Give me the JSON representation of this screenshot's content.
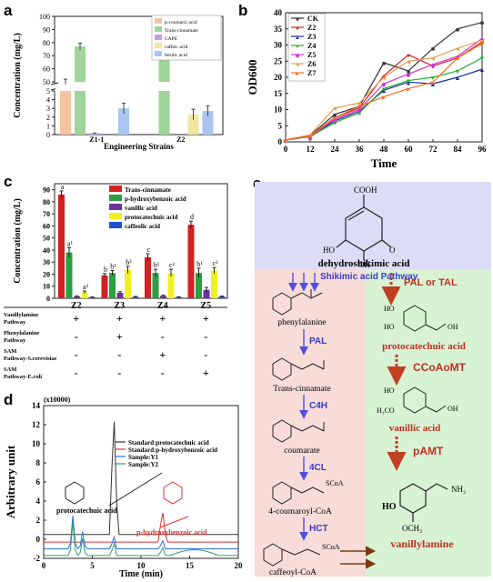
{
  "panels": {
    "a": {
      "label": "a",
      "chart_data": {
        "type": "bar",
        "categories": [
          "Z1-1",
          "Z2"
        ],
        "series": [
          {
            "name": "p-coumaric acid",
            "values": [
              50,
              null
            ],
            "errors": [
              2,
              null
            ],
            "color": "#f5c4a0"
          },
          {
            "name": "Trans-cinnamate",
            "values": [
              77,
              86
            ],
            "errors": [
              2.5,
              2
            ],
            "color": "#9fd49a"
          },
          {
            "name": "CAPE",
            "values": [
              0.15,
              null
            ],
            "errors": [
              0.03,
              null
            ],
            "color": "#c8a0e0"
          },
          {
            "name": "caffeic acid",
            "values": [
              null,
              2.3
            ],
            "errors": [
              null,
              0.6
            ],
            "color": "#f2e7a0"
          },
          {
            "name": "ferulic acid",
            "values": [
              3.0,
              2.7
            ],
            "errors": [
              0.6,
              0.6
            ],
            "color": "#a8c6ef"
          }
        ],
        "ylabel": "Concentration (mg/L)",
        "xlabel": "Engineering Strains",
        "yticks_lower": [
          "0",
          "1",
          "2",
          "3",
          "4",
          "5"
        ],
        "yticks_upper": [
          "50",
          "60",
          "70",
          "80",
          "90",
          "100"
        ],
        "broken_axis": true
      }
    },
    "b": {
      "label": "b",
      "chart_data": {
        "type": "line",
        "x": [
          0,
          12,
          24,
          36,
          48,
          60,
          72,
          84,
          96
        ],
        "series": [
          {
            "name": "CK",
            "values": [
              0.6,
              2.0,
              8.5,
              11.0,
              24.5,
              22.0,
              29.0,
              35.0,
              37.0
            ],
            "color": "#333333",
            "marker": "■"
          },
          {
            "name": "Z2",
            "values": [
              0.6,
              1.8,
              7.5,
              10.5,
              20.5,
              27.0,
              23.5,
              26.0,
              31.0
            ],
            "color": "#e02020",
            "marker": "●"
          },
          {
            "name": "Z3",
            "values": [
              0.6,
              1.6,
              6.5,
              9.5,
              16.0,
              18.5,
              18.0,
              20.0,
              22.5
            ],
            "color": "#1a2aa0",
            "marker": "▲"
          },
          {
            "name": "Z4",
            "values": [
              0.6,
              1.6,
              6.0,
              9.0,
              16.5,
              19.0,
              20.0,
              22.0,
              26.0
            ],
            "color": "#22b030",
            "marker": "▼"
          },
          {
            "name": "Z5",
            "values": [
              0.6,
              1.7,
              7.0,
              10.0,
              18.0,
              21.0,
              24.0,
              26.5,
              32.0
            ],
            "color": "#d030d0",
            "marker": "◆"
          },
          {
            "name": "Z6",
            "values": [
              0.6,
              2.2,
              10.5,
              12.0,
              20.0,
              25.0,
              26.0,
              29.0,
              31.5
            ],
            "color": "#e0a050",
            "marker": "◄"
          },
          {
            "name": "Z7",
            "values": [
              0.6,
              1.9,
              7.5,
              11.0,
              14.0,
              16.5,
              18.5,
              26.0,
              30.5
            ],
            "color": "#f07020",
            "marker": "►"
          }
        ],
        "xlabel": "Time",
        "ylabel": "OD600",
        "xticks": [
          "0",
          "12",
          "24",
          "36",
          "48",
          "60",
          "72",
          "84",
          "96"
        ],
        "yticks": [
          "0",
          "5",
          "10",
          "15",
          "20",
          "25",
          "30",
          "35",
          "40"
        ],
        "ylim": [
          0,
          40
        ]
      }
    },
    "c": {
      "label": "c",
      "chart_data": {
        "type": "bar",
        "categories": [
          "Z2",
          "Z3",
          "Z4",
          "Z5"
        ],
        "series": [
          {
            "name": "Trans-cinnamate",
            "values": [
              86,
              19,
              34,
              61
            ],
            "errors": [
              3,
              1.5,
              3,
              3
            ],
            "letters": [
              "a",
              "b",
              "c",
              "d"
            ],
            "color": "#d42020"
          },
          {
            "name": "p-hydroxybenzoic acid",
            "values": [
              38,
              21,
              21,
              21
            ],
            "errors": [
              4,
              2,
              3,
              4
            ],
            "letters": [
              "a¹",
              "b¹",
              "b¹",
              "b¹"
            ],
            "color": "#2aa040"
          },
          {
            "name": "vanillic acid",
            "values": [
              1.5,
              4.5,
              2,
              7
            ],
            "errors": [
              0.5,
              1,
              0.5,
              2
            ],
            "letters": [
              "",
              "",
              "",
              ""
            ],
            "color": "#7030a0"
          },
          {
            "name": "protocatechuic acid",
            "values": [
              5,
              23.5,
              21,
              23
            ],
            "errors": [
              1,
              3,
              3,
              2.5
            ],
            "letters": [
              "a²",
              "b²",
              "c²",
              "c²"
            ],
            "color": "#f0f020"
          },
          {
            "name": "caffeolic acid",
            "values": [
              0.8,
              1.2,
              1,
              1.5
            ],
            "errors": [
              0.3,
              0.3,
              0.3,
              0.3
            ],
            "letters": [
              "",
              "",
              "",
              ""
            ],
            "color": "#2050d0"
          }
        ],
        "ylabel": "Concentration (mg/L)",
        "yticks": [
          "0",
          "10",
          "20",
          "30",
          "40",
          "50",
          "60",
          "70",
          "80",
          "90"
        ],
        "ylim": [
          0,
          95
        ]
      },
      "table": {
        "rows": [
          {
            "label": "Vanillylamine Pathway",
            "marks": [
              "+",
              "+",
              "+",
              "+"
            ]
          },
          {
            "label": "Phenylalanine Pathway",
            "marks": [
              "-",
              "+",
              "-",
              "-"
            ]
          },
          {
            "label": "SAM Pathway-S.cerevisiae",
            "marks": [
              "-",
              "-",
              "+",
              "-"
            ]
          },
          {
            "label": "SAM Pathway-E.coli",
            "marks": [
              "-",
              "-",
              "-",
              "+"
            ]
          }
        ]
      }
    },
    "d": {
      "label": "d",
      "scale": "(x10000)",
      "chart_data": {
        "type": "line",
        "series": [
          {
            "name": "Standard:protocatechuic acid",
            "color": "#333333"
          },
          {
            "name": "Standard:p-hydroxybenzoic acid",
            "color": "#e03030"
          },
          {
            "name": "Sample:Y1",
            "color": "#3070e0"
          },
          {
            "name": "Sample:Y2",
            "color": "#30a070"
          }
        ],
        "xlabel": "Time (min)",
        "ylabel": "Arbitrary unit",
        "xticks": [
          "0",
          "5",
          "10",
          "15",
          "20"
        ],
        "yticks": [
          "-2",
          "0",
          "2",
          "4",
          "6",
          "8",
          "10",
          "12",
          "14"
        ],
        "ylim": [
          -2,
          14
        ],
        "xlim": [
          0,
          20
        ]
      },
      "annotations": {
        "proto": "protocatechuic acid",
        "phb": "p-hydroxybenzoic acid"
      }
    },
    "e": {
      "label": "e",
      "start": "dehydroshikimic acid",
      "shikimic": "Shikimic acid Pathway",
      "left_chain": [
        "phenylalanine",
        "Trans-cinnamate",
        "coumarate",
        "4-coumaroyl-CoA",
        "caffeoyl-CoA"
      ],
      "left_enzymes": [
        "PAL",
        "C4H",
        "4CL",
        "HCT"
      ],
      "right_enzyme1": "PAL or TAL",
      "right_chain": [
        "protocatechuic acid",
        "vanillic acid"
      ],
      "right_enzymes": [
        "CCoAoMT",
        "pAMT"
      ],
      "product": "vanillylamine",
      "chem": {
        "cooh": "COOH",
        "ho": "HO",
        "oh": "OH",
        "nh2": "NH₂",
        "och3": "OCH₃",
        "h3co": "H₃CO",
        "nh3": "NH₂",
        "scoa": "SCoA",
        "o": "O"
      }
    }
  }
}
